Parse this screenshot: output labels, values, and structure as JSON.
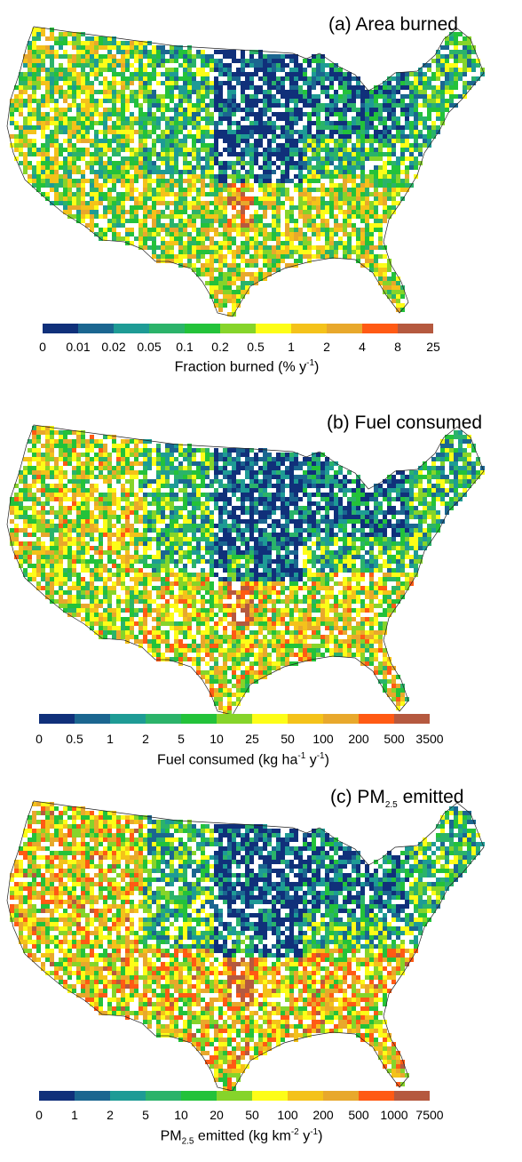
{
  "colors": [
    "#10307a",
    "#1b6690",
    "#1e9b95",
    "#2bb36a",
    "#23c23a",
    "#86d42a",
    "#fdfd18",
    "#f4c21a",
    "#e8a82c",
    "#ff5a14",
    "#b5593f"
  ],
  "panels": [
    {
      "id": "a",
      "title": "(a) Area burned",
      "ticks": [
        "0",
        "0.01",
        "0.02",
        "0.05",
        "0.1",
        "0.2",
        "0.5",
        "1",
        "2",
        "4",
        "8",
        "25"
      ],
      "label_main": "Fraction burned  (% y",
      "label_sup": "-1",
      "label_end": ")"
    },
    {
      "id": "b",
      "title": "(b) Fuel consumed",
      "ticks": [
        "0",
        "0.5",
        "1",
        "2",
        "5",
        "10",
        "25",
        "50",
        "100",
        "200",
        "500",
        "3500"
      ],
      "label_main": "Fuel consumed  (kg ha",
      "label_sup": "-1",
      "label_mid": " y",
      "label_sup2": "-1",
      "label_end": ")"
    },
    {
      "id": "c",
      "title_prefix": "(c) PM",
      "title_sub": "2.5",
      "title_suffix": " emitted",
      "ticks": [
        "0",
        "1",
        "2",
        "5",
        "10",
        "20",
        "50",
        "100",
        "200",
        "500",
        "1000",
        "7500"
      ],
      "label_prefix": "PM",
      "label_sub": "2.5",
      "label_main": " emitted  (kg km",
      "label_sup": "-2",
      "label_mid": " y",
      "label_sup2": "-1",
      "label_end": ")"
    }
  ]
}
